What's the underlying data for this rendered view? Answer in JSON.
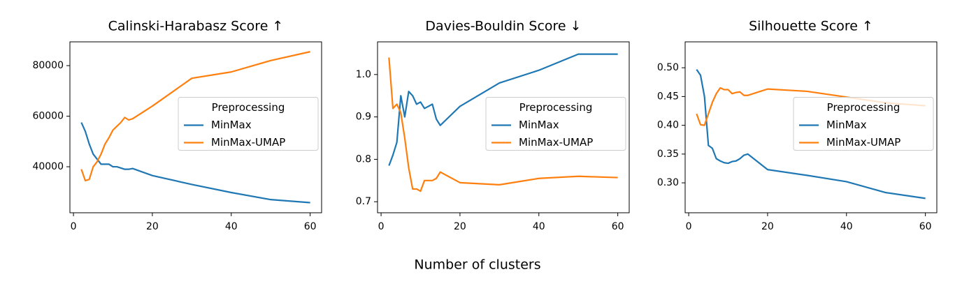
{
  "figure": {
    "xlabel": "Number of clusters"
  },
  "chart_data": [
    {
      "type": "line",
      "title": "Calinski-Harabasz Score  ↑",
      "legend_title": "Preprocessing",
      "legend": "center right",
      "x": [
        2,
        3,
        4,
        5,
        6,
        7,
        8,
        9,
        10,
        11,
        12,
        13,
        14,
        15,
        20,
        30,
        40,
        50,
        60
      ],
      "xlim": [
        -0.9,
        62.9
      ],
      "xticks": [
        0,
        20,
        40,
        60
      ],
      "ylim": [
        21800,
        89400
      ],
      "yticks": [
        40000,
        60000,
        80000
      ],
      "series": [
        {
          "name": "MinMax",
          "color": "#1f77b4",
          "values": [
            57500,
            54000,
            49000,
            45000,
            43000,
            41000,
            41000,
            41000,
            40000,
            40000,
            39500,
            39000,
            39000,
            39300,
            36500,
            33000,
            29800,
            27000,
            25800
          ]
        },
        {
          "name": "MinMax-UMAP",
          "color": "#ff7f0e",
          "values": [
            39000,
            34500,
            35000,
            40000,
            42000,
            45000,
            49000,
            51500,
            54500,
            56000,
            57500,
            59500,
            58500,
            59000,
            64000,
            75000,
            77500,
            82000,
            85500
          ]
        }
      ]
    },
    {
      "type": "line",
      "title": "Davies-Bouldin Score  ↓",
      "legend_title": "Preprocessing",
      "legend": "center right",
      "x": [
        2,
        3,
        4,
        5,
        6,
        7,
        8,
        9,
        10,
        11,
        12,
        13,
        14,
        15,
        20,
        30,
        40,
        50,
        60
      ],
      "xlim": [
        -0.9,
        62.9
      ],
      "xticks": [
        0,
        20,
        40,
        60
      ],
      "ylim": [
        0.674,
        1.077
      ],
      "yticks": [
        0.7,
        0.8,
        0.9,
        {
          "value": 1.0,
          "label": "1.0"
        }
      ],
      "series": [
        {
          "name": "MinMax",
          "color": "#1f77b4",
          "values": [
            0.785,
            0.81,
            0.84,
            0.95,
            0.9,
            0.96,
            0.95,
            0.93,
            0.935,
            0.92,
            0.925,
            0.93,
            0.895,
            0.88,
            0.925,
            0.98,
            1.01,
            1.048,
            1.048
          ]
        },
        {
          "name": "MinMax-UMAP",
          "color": "#ff7f0e",
          "values": [
            1.04,
            0.92,
            0.93,
            0.91,
            0.85,
            0.78,
            0.73,
            0.73,
            0.725,
            0.75,
            0.75,
            0.75,
            0.755,
            0.77,
            0.745,
            0.74,
            0.755,
            0.76,
            0.757
          ]
        }
      ]
    },
    {
      "type": "line",
      "title": "Silhouette Score  ↑",
      "legend_title": "Preprocessing",
      "legend": "center right",
      "x": [
        2,
        3,
        4,
        5,
        6,
        7,
        8,
        9,
        10,
        11,
        12,
        13,
        14,
        15,
        20,
        30,
        40,
        50,
        60
      ],
      "xlim": [
        -0.9,
        62.9
      ],
      "xticks": [
        0,
        20,
        40,
        60
      ],
      "ylim": [
        0.248,
        0.545
      ],
      "yticks": [
        {
          "value": 0.3,
          "label": "0.30"
        },
        0.35,
        {
          "value": 0.4,
          "label": "0.40"
        },
        0.45,
        {
          "value": 0.5,
          "label": "0.50"
        }
      ],
      "series": [
        {
          "name": "MinMax",
          "color": "#1f77b4",
          "values": [
            0.497,
            0.487,
            0.45,
            0.365,
            0.36,
            0.342,
            0.338,
            0.335,
            0.334,
            0.337,
            0.338,
            0.342,
            0.348,
            0.35,
            0.323,
            0.313,
            0.302,
            0.283,
            0.273
          ]
        },
        {
          "name": "MinMax-UMAP",
          "color": "#ff7f0e",
          "values": [
            0.42,
            0.401,
            0.4,
            0.42,
            0.44,
            0.455,
            0.465,
            0.462,
            0.462,
            0.455,
            0.457,
            0.458,
            0.452,
            0.452,
            0.463,
            0.459,
            0.449,
            0.439,
            0.434
          ]
        }
      ]
    }
  ]
}
